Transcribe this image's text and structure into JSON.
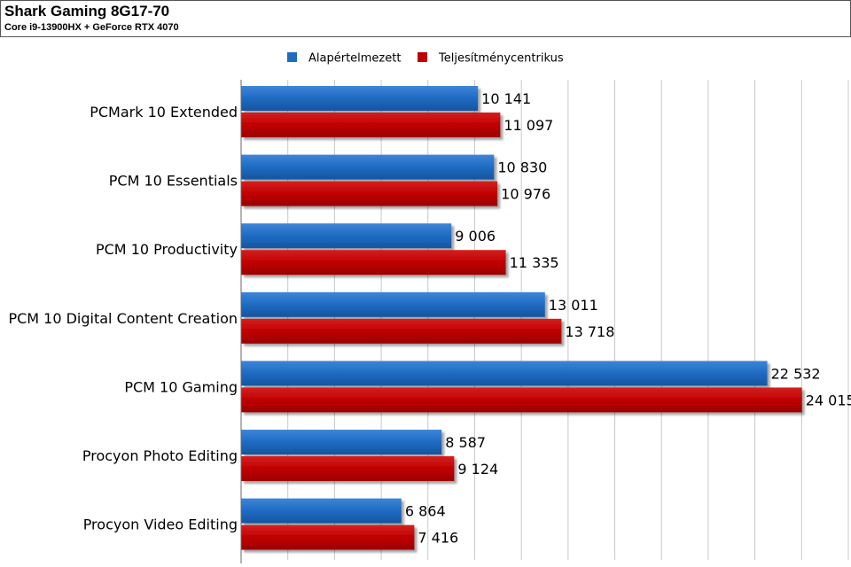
{
  "header": {
    "title": "Shark Gaming 8G17-70",
    "subtitle": "Core i9-13900HX + GeForce RTX 4070"
  },
  "colors": {
    "series1": "#1f6bc2",
    "series2": "#c00000"
  },
  "chart_data": {
    "type": "bar",
    "orientation": "horizontal",
    "title": "Shark Gaming 8G17-70",
    "subtitle": "Core i9-13900HX + GeForce RTX 4070",
    "categories": [
      "PCMark 10 Extended",
      "PCM 10 Essentials",
      "PCM 10 Productivity",
      "PCM 10 Digital Content Creation",
      "PCM 10 Gaming",
      "Procyon Photo Editing",
      "Procyon Video Editing"
    ],
    "series": [
      {
        "name": "Alapértelmezett",
        "values": [
          10141,
          10830,
          9006,
          13011,
          22532,
          8587,
          6864
        ],
        "labels": [
          "10 141",
          "10 830",
          "9 006",
          "13 011",
          "22 532",
          "8 587",
          "6 864"
        ]
      },
      {
        "name": "Teljesítménycentrikus",
        "values": [
          11097,
          10976,
          11335,
          13718,
          24015,
          9124,
          7416
        ],
        "labels": [
          "11 097",
          "10 976",
          "11 335",
          "13 718",
          "24 015",
          "9 124",
          "7 416"
        ]
      }
    ],
    "xlim": [
      0,
      26000
    ],
    "grid": true,
    "legend": "top"
  }
}
